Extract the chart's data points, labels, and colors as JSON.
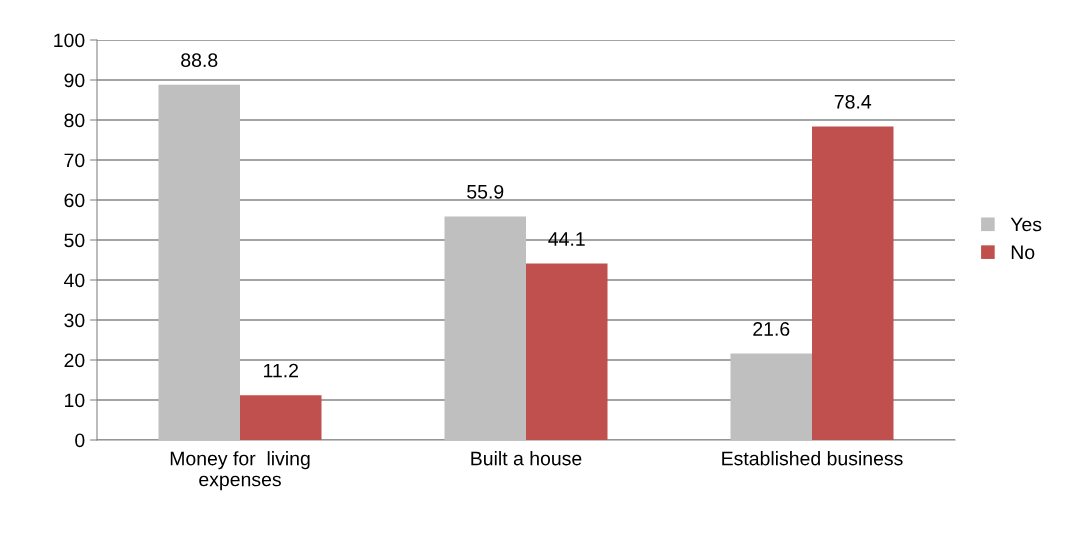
{
  "chart_data": {
    "type": "bar",
    "categories": [
      "Money for  living\nexpenses",
      "Built a house",
      "Established business"
    ],
    "series": [
      {
        "name": "Yes",
        "color": "#bfbfbf",
        "values": [
          88.8,
          55.9,
          21.6
        ]
      },
      {
        "name": "No",
        "color": "#c0504d",
        "values": [
          11.2,
          44.1,
          78.4
        ]
      }
    ],
    "ylim": [
      0,
      100
    ],
    "yticks": [
      0,
      10,
      20,
      30,
      40,
      50,
      60,
      70,
      80,
      90,
      100
    ],
    "grid": "y",
    "legend": "right",
    "data_labels": true
  }
}
